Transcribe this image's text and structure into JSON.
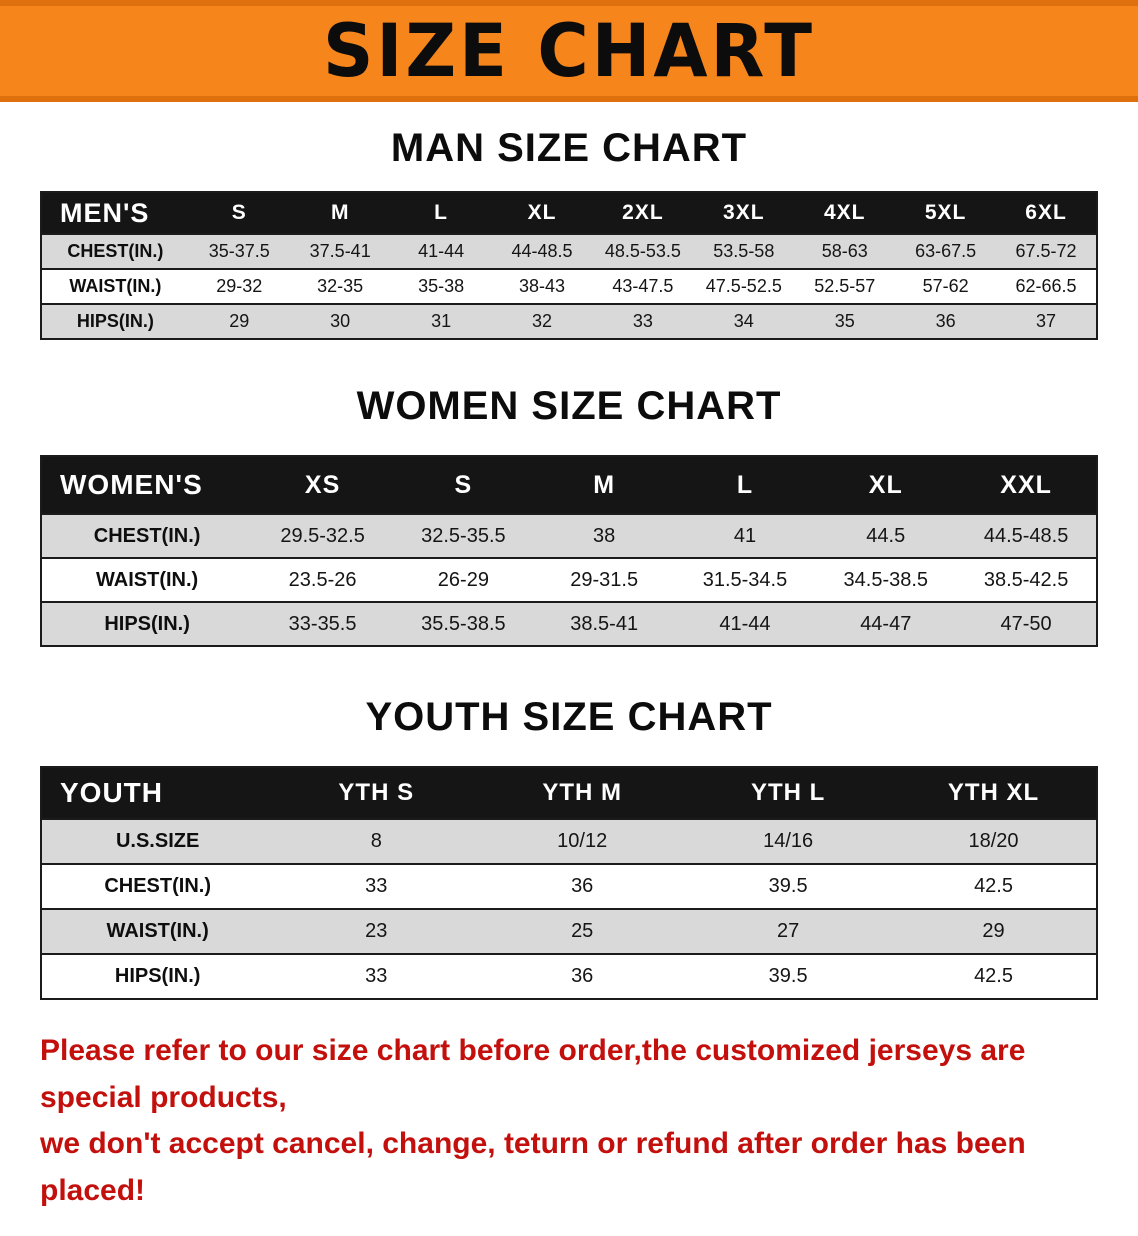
{
  "banner": {
    "title": "SIZE CHART"
  },
  "men": {
    "heading": "MAN SIZE CHART",
    "table": {
      "header": [
        "MEN'S",
        "S",
        "M",
        "L",
        "XL",
        "2XL",
        "3XL",
        "4XL",
        "5XL",
        "6XL"
      ],
      "rows": [
        [
          "CHEST(IN.)",
          "35-37.5",
          "37.5-41",
          "41-44",
          "44-48.5",
          "48.5-53.5",
          "53.5-58",
          "58-63",
          "63-67.5",
          "67.5-72"
        ],
        [
          "WAIST(IN.)",
          "29-32",
          "32-35",
          "35-38",
          "38-43",
          "43-47.5",
          "47.5-52.5",
          "52.5-57",
          "57-62",
          "62-66.5"
        ],
        [
          "HIPS(IN.)",
          "29",
          "30",
          "31",
          "32",
          "33",
          "34",
          "35",
          "36",
          "37"
        ]
      ]
    }
  },
  "women": {
    "heading": "WOMEN SIZE CHART",
    "table": {
      "header": [
        "WOMEN'S",
        "XS",
        "S",
        "M",
        "L",
        "XL",
        "XXL"
      ],
      "rows": [
        [
          "CHEST(IN.)",
          "29.5-32.5",
          "32.5-35.5",
          "38",
          "41",
          "44.5",
          "44.5-48.5"
        ],
        [
          "WAIST(IN.)",
          "23.5-26",
          "26-29",
          "29-31.5",
          "31.5-34.5",
          "34.5-38.5",
          "38.5-42.5"
        ],
        [
          "HIPS(IN.)",
          "33-35.5",
          "35.5-38.5",
          "38.5-41",
          "41-44",
          "44-47",
          "47-50"
        ]
      ]
    }
  },
  "youth": {
    "heading": "YOUTH SIZE CHART",
    "table": {
      "header": [
        "YOUTH",
        "YTH S",
        "YTH M",
        "YTH L",
        "YTH XL"
      ],
      "rows": [
        [
          "U.S.SIZE",
          "8",
          "10/12",
          "14/16",
          "18/20"
        ],
        [
          "CHEST(IN.)",
          "33",
          "36",
          "39.5",
          "42.5"
        ],
        [
          "WAIST(IN.)",
          "23",
          "25",
          "27",
          "29"
        ],
        [
          "HIPS(IN.)",
          "33",
          "36",
          "39.5",
          "42.5"
        ]
      ]
    }
  },
  "notice": {
    "line1": "Please refer to our size chart before order,the customized jerseys are special products,",
    "line2": "we don't accept cancel, change, teturn or refund after order has been placed!"
  },
  "colors": {
    "banner_bg": "#f6851c",
    "banner_edge": "#de700e",
    "header_bg": "#151515",
    "row_alt_bg": "#d9d9d9",
    "table_border": "#1b1b1b",
    "footer_text": "#c3100d",
    "heading_text": "#0c0c0c"
  }
}
